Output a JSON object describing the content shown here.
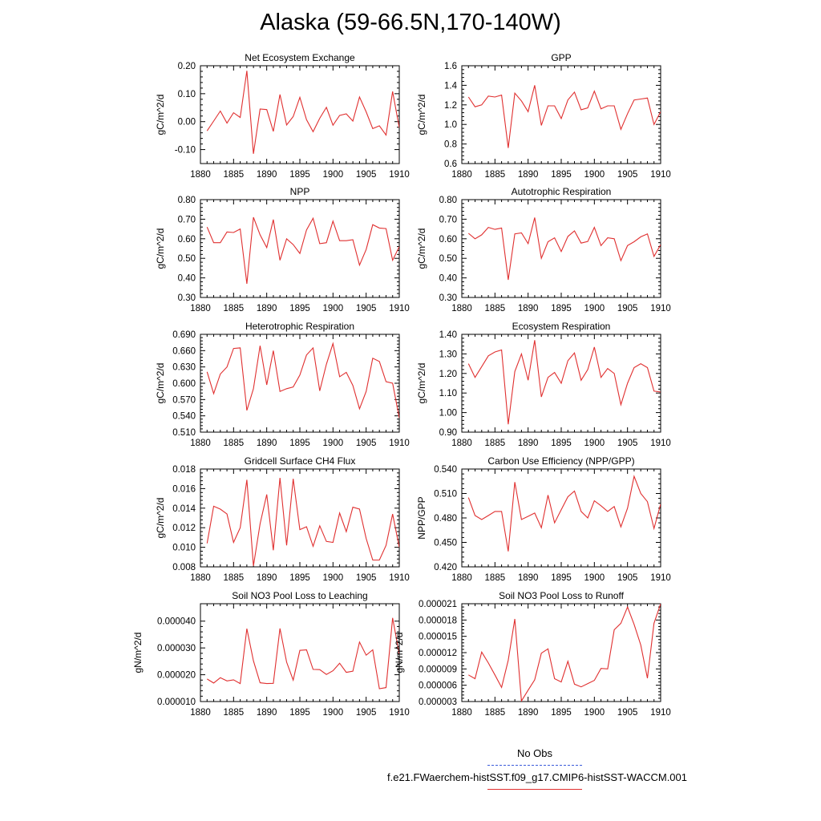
{
  "title": "Alaska (59-66.5N,170-140W)",
  "legend": {
    "obs_label": "No Obs",
    "obs_color": "#3b5bdb",
    "model_label": "f.e21.FWaerchem-histSST.f09_g17.CMIP6-histSST-WACCM.001",
    "model_color": "#e03030"
  },
  "chart_data": [
    {
      "type": "line",
      "title": "Net Ecosystem Exchange",
      "ylabel": "gC/m^2/d",
      "xlim": [
        1880,
        1910
      ],
      "xticks": [
        1880,
        1885,
        1890,
        1895,
        1900,
        1905,
        1910
      ],
      "ylim": [
        -0.15,
        0.2
      ],
      "yticks": [
        -0.1,
        0.0,
        0.1,
        0.2
      ],
      "ytick_labels": [
        "-0.10",
        "0.00",
        "0.10",
        "0.20"
      ],
      "x": [
        1881,
        1882,
        1883,
        1884,
        1885,
        1886,
        1887,
        1888,
        1889,
        1890,
        1891,
        1892,
        1893,
        1894,
        1895,
        1896,
        1897,
        1898,
        1899,
        1900,
        1901,
        1902,
        1903,
        1904,
        1905,
        1906,
        1907,
        1908,
        1909,
        1910
      ],
      "series": [
        {
          "values": [
            -0.033,
            0.002,
            0.038,
            -0.005,
            0.032,
            0.015,
            0.182,
            -0.115,
            0.045,
            0.043,
            -0.035,
            0.097,
            -0.012,
            0.018,
            0.087,
            0.007,
            -0.036,
            0.012,
            0.051,
            -0.013,
            0.022,
            0.028,
            0.002,
            0.088,
            0.035,
            -0.025,
            -0.015,
            -0.048,
            0.108,
            -0.022
          ],
          "color": "#e03030"
        }
      ]
    },
    {
      "type": "line",
      "title": "GPP",
      "ylabel": "gC/m^2/d",
      "xlim": [
        1880,
        1910
      ],
      "xticks": [
        1880,
        1885,
        1890,
        1895,
        1900,
        1905,
        1910
      ],
      "ylim": [
        0.6,
        1.6
      ],
      "yticks": [
        0.6,
        0.8,
        1.0,
        1.2,
        1.4,
        1.6
      ],
      "ytick_labels": [
        "0.6",
        "0.8",
        "1.0",
        "1.2",
        "1.4",
        "1.6"
      ],
      "x": [
        1881,
        1882,
        1883,
        1884,
        1885,
        1886,
        1887,
        1888,
        1889,
        1890,
        1891,
        1892,
        1893,
        1894,
        1895,
        1896,
        1897,
        1898,
        1899,
        1900,
        1901,
        1902,
        1903,
        1904,
        1905,
        1906,
        1907,
        1908,
        1909,
        1910
      ],
      "series": [
        {
          "values": [
            1.28,
            1.18,
            1.2,
            1.29,
            1.28,
            1.3,
            0.76,
            1.32,
            1.24,
            1.13,
            1.4,
            0.99,
            1.19,
            1.19,
            1.06,
            1.25,
            1.33,
            1.15,
            1.17,
            1.34,
            1.16,
            1.19,
            1.19,
            0.95,
            1.11,
            1.25,
            1.26,
            1.27,
            1.0,
            1.13
          ],
          "color": "#e03030"
        }
      ]
    },
    {
      "type": "line",
      "title": "NPP",
      "ylabel": "gC/m^2/d",
      "xlim": [
        1880,
        1910
      ],
      "xticks": [
        1880,
        1885,
        1890,
        1895,
        1900,
        1905,
        1910
      ],
      "ylim": [
        0.3,
        0.8
      ],
      "yticks": [
        0.3,
        0.4,
        0.5,
        0.6,
        0.7,
        0.8
      ],
      "ytick_labels": [
        "0.30",
        "0.40",
        "0.50",
        "0.60",
        "0.70",
        "0.80"
      ],
      "x": [
        1881,
        1882,
        1883,
        1884,
        1885,
        1886,
        1887,
        1888,
        1889,
        1890,
        1891,
        1892,
        1893,
        1894,
        1895,
        1896,
        1897,
        1898,
        1899,
        1900,
        1901,
        1902,
        1903,
        1904,
        1905,
        1906,
        1907,
        1908,
        1909,
        1910
      ],
      "series": [
        {
          "values": [
            0.66,
            0.58,
            0.58,
            0.635,
            0.632,
            0.65,
            0.37,
            0.71,
            0.62,
            0.555,
            0.698,
            0.49,
            0.6,
            0.57,
            0.525,
            0.645,
            0.705,
            0.575,
            0.58,
            0.69,
            0.59,
            0.59,
            0.595,
            0.465,
            0.545,
            0.672,
            0.655,
            0.652,
            0.49,
            0.56
          ],
          "color": "#e03030"
        }
      ]
    },
    {
      "type": "line",
      "title": "Autotrophic Respiration",
      "ylabel": "gC/m^2/d",
      "xlim": [
        1880,
        1910
      ],
      "xticks": [
        1880,
        1885,
        1890,
        1895,
        1900,
        1905,
        1910
      ],
      "ylim": [
        0.3,
        0.8
      ],
      "yticks": [
        0.3,
        0.4,
        0.5,
        0.6,
        0.7,
        0.8
      ],
      "ytick_labels": [
        "0.30",
        "0.40",
        "0.50",
        "0.60",
        "0.70",
        "0.80"
      ],
      "x": [
        1881,
        1882,
        1883,
        1884,
        1885,
        1886,
        1887,
        1888,
        1889,
        1890,
        1891,
        1892,
        1893,
        1894,
        1895,
        1896,
        1897,
        1898,
        1899,
        1900,
        1901,
        1902,
        1903,
        1904,
        1905,
        1906,
        1907,
        1908,
        1909,
        1910
      ],
      "series": [
        {
          "values": [
            0.628,
            0.6,
            0.62,
            0.658,
            0.648,
            0.655,
            0.39,
            0.625,
            0.63,
            0.575,
            0.708,
            0.5,
            0.585,
            0.605,
            0.535,
            0.612,
            0.64,
            0.578,
            0.586,
            0.658,
            0.565,
            0.605,
            0.6,
            0.488,
            0.565,
            0.585,
            0.61,
            0.625,
            0.51,
            0.57
          ],
          "color": "#e03030"
        }
      ]
    },
    {
      "type": "line",
      "title": "Heterotrophic Respiration",
      "ylabel": "gC/m^2/d",
      "xlim": [
        1880,
        1910
      ],
      "xticks": [
        1880,
        1885,
        1890,
        1895,
        1900,
        1905,
        1910
      ],
      "ylim": [
        0.51,
        0.69
      ],
      "yticks": [
        0.51,
        0.54,
        0.57,
        0.6,
        0.63,
        0.66,
        0.69
      ],
      "ytick_labels": [
        "0.510",
        "0.540",
        "0.570",
        "0.600",
        "0.630",
        "0.660",
        "0.690"
      ],
      "x": [
        1881,
        1882,
        1883,
        1884,
        1885,
        1886,
        1887,
        1888,
        1889,
        1890,
        1891,
        1892,
        1893,
        1894,
        1895,
        1896,
        1897,
        1898,
        1899,
        1900,
        1901,
        1902,
        1903,
        1904,
        1905,
        1906,
        1907,
        1908,
        1909,
        1910
      ],
      "series": [
        {
          "values": [
            0.621,
            0.581,
            0.617,
            0.63,
            0.664,
            0.665,
            0.55,
            0.59,
            0.669,
            0.597,
            0.66,
            0.585,
            0.59,
            0.593,
            0.615,
            0.652,
            0.665,
            0.586,
            0.635,
            0.673,
            0.612,
            0.62,
            0.596,
            0.553,
            0.585,
            0.646,
            0.64,
            0.603,
            0.6,
            0.536
          ],
          "color": "#e03030"
        }
      ]
    },
    {
      "type": "line",
      "title": "Ecosystem Respiration",
      "ylabel": "gC/m^2/d",
      "xlim": [
        1880,
        1910
      ],
      "xticks": [
        1880,
        1885,
        1890,
        1895,
        1900,
        1905,
        1910
      ],
      "ylim": [
        0.9,
        1.4
      ],
      "yticks": [
        0.9,
        1.0,
        1.1,
        1.2,
        1.3,
        1.4
      ],
      "ytick_labels": [
        "0.90",
        "1.00",
        "1.10",
        "1.20",
        "1.30",
        "1.40"
      ],
      "x": [
        1881,
        1882,
        1883,
        1884,
        1885,
        1886,
        1887,
        1888,
        1889,
        1890,
        1891,
        1892,
        1893,
        1894,
        1895,
        1896,
        1897,
        1898,
        1899,
        1900,
        1901,
        1902,
        1903,
        1904,
        1905,
        1906,
        1907,
        1908,
        1909,
        1910
      ],
      "series": [
        {
          "values": [
            1.25,
            1.18,
            1.235,
            1.29,
            1.31,
            1.32,
            0.94,
            1.21,
            1.3,
            1.165,
            1.37,
            1.08,
            1.18,
            1.205,
            1.15,
            1.265,
            1.305,
            1.165,
            1.22,
            1.335,
            1.18,
            1.225,
            1.2,
            1.04,
            1.15,
            1.23,
            1.25,
            1.23,
            1.11,
            1.105
          ],
          "color": "#e03030"
        }
      ]
    },
    {
      "type": "line",
      "title": "Gridcell Surface CH4 Flux",
      "ylabel": "gC/m^2/d",
      "xlim": [
        1880,
        1910
      ],
      "xticks": [
        1880,
        1885,
        1890,
        1895,
        1900,
        1905,
        1910
      ],
      "ylim": [
        0.008,
        0.018
      ],
      "yticks": [
        0.008,
        0.01,
        0.012,
        0.014,
        0.016,
        0.018
      ],
      "ytick_labels": [
        "0.008",
        "0.010",
        "0.012",
        "0.014",
        "0.016",
        "0.018"
      ],
      "x": [
        1881,
        1882,
        1883,
        1884,
        1885,
        1886,
        1887,
        1888,
        1889,
        1890,
        1891,
        1892,
        1893,
        1894,
        1895,
        1896,
        1897,
        1898,
        1899,
        1900,
        1901,
        1902,
        1903,
        1904,
        1905,
        1906,
        1907,
        1908,
        1909,
        1910
      ],
      "series": [
        {
          "values": [
            0.0104,
            0.0142,
            0.0139,
            0.0134,
            0.0105,
            0.012,
            0.0169,
            0.0081,
            0.0124,
            0.0154,
            0.0097,
            0.0171,
            0.0102,
            0.017,
            0.0118,
            0.0121,
            0.0101,
            0.0122,
            0.0106,
            0.0105,
            0.0135,
            0.0116,
            0.0141,
            0.0139,
            0.0109,
            0.0087,
            0.0087,
            0.0102,
            0.0134,
            0.01
          ],
          "color": "#e03030"
        }
      ]
    },
    {
      "type": "line",
      "title": "Carbon Use Efficiency (NPP/GPP)",
      "ylabel": "NPP/GPP",
      "xlim": [
        1880,
        1910
      ],
      "xticks": [
        1880,
        1885,
        1890,
        1895,
        1900,
        1905,
        1910
      ],
      "ylim": [
        0.42,
        0.54
      ],
      "yticks": [
        0.42,
        0.45,
        0.48,
        0.51,
        0.54
      ],
      "ytick_labels": [
        "0.420",
        "0.450",
        "0.480",
        "0.510",
        "0.540"
      ],
      "x": [
        1881,
        1882,
        1883,
        1884,
        1885,
        1886,
        1887,
        1888,
        1889,
        1890,
        1891,
        1892,
        1893,
        1894,
        1895,
        1896,
        1897,
        1898,
        1899,
        1900,
        1901,
        1902,
        1903,
        1904,
        1905,
        1906,
        1907,
        1908,
        1909,
        1910
      ],
      "series": [
        {
          "values": [
            0.505,
            0.483,
            0.478,
            0.483,
            0.488,
            0.488,
            0.439,
            0.524,
            0.478,
            0.482,
            0.486,
            0.468,
            0.508,
            0.474,
            0.49,
            0.506,
            0.513,
            0.488,
            0.48,
            0.501,
            0.495,
            0.488,
            0.494,
            0.469,
            0.492,
            0.531,
            0.51,
            0.5,
            0.467,
            0.497
          ],
          "color": "#e03030"
        }
      ]
    },
    {
      "type": "line",
      "title": "Soil NO3 Pool Loss to Leaching",
      "ylabel": "gN/m^2/d",
      "xlim": [
        1880,
        1910
      ],
      "xticks": [
        1880,
        1885,
        1890,
        1895,
        1900,
        1905,
        1910
      ],
      "ylim": [
        1e-05,
        4.65e-05
      ],
      "yticks": [
        1e-05,
        2e-05,
        3e-05,
        4e-05
      ],
      "ytick_labels": [
        "0.000010",
        "0.000020",
        "0.000030",
        "0.000040"
      ],
      "x": [
        1881,
        1882,
        1883,
        1884,
        1885,
        1886,
        1887,
        1888,
        1889,
        1890,
        1891,
        1892,
        1893,
        1894,
        1895,
        1896,
        1897,
        1898,
        1899,
        1900,
        1901,
        1902,
        1903,
        1904,
        1905,
        1906,
        1907,
        1908,
        1909,
        1910
      ],
      "series": [
        {
          "values": [
            1.84e-05,
            1.69e-05,
            1.89e-05,
            1.77e-05,
            1.81e-05,
            1.67e-05,
            3.72e-05,
            2.52e-05,
            1.7e-05,
            1.67e-05,
            1.68e-05,
            3.73e-05,
            2.47e-05,
            1.8e-05,
            2.91e-05,
            2.93e-05,
            2.2e-05,
            2.19e-05,
            2.01e-05,
            2.15e-05,
            2.43e-05,
            2.09e-05,
            2.13e-05,
            3.22e-05,
            2.73e-05,
            2.93e-05,
            1.48e-05,
            1.52e-05,
            4.12e-05,
            2.76e-05
          ],
          "color": "#e03030"
        }
      ]
    },
    {
      "type": "line",
      "title": "Soil NO3 Pool Loss to Runoff",
      "ylabel": "gN/m^2/d",
      "xlim": [
        1880,
        1910
      ],
      "xticks": [
        1880,
        1885,
        1890,
        1895,
        1900,
        1905,
        1910
      ],
      "ylim": [
        3e-06,
        2.1e-05
      ],
      "yticks": [
        3e-06,
        6e-06,
        9e-06,
        1.2e-05,
        1.5e-05,
        1.8e-05,
        2.1e-05
      ],
      "ytick_labels": [
        "0.000003",
        "0.000006",
        "0.000009",
        "0.000012",
        "0.000015",
        "0.000018",
        "0.000021"
      ],
      "x": [
        1881,
        1882,
        1883,
        1884,
        1885,
        1886,
        1887,
        1888,
        1889,
        1890,
        1891,
        1892,
        1893,
        1894,
        1895,
        1896,
        1897,
        1898,
        1899,
        1900,
        1901,
        1902,
        1903,
        1904,
        1905,
        1906,
        1907,
        1908,
        1909,
        1910
      ],
      "series": [
        {
          "values": [
            7.9e-06,
            7.2e-06,
            1.21e-05,
            1.01e-05,
            7.9e-06,
            5.6e-06,
            1.06e-05,
            1.82e-05,
            3.1e-06,
            5.1e-06,
            7e-06,
            1.19e-05,
            1.27e-05,
            7.2e-06,
            6.6e-06,
            1.04e-05,
            6.2e-06,
            5.7e-06,
            6.3e-06,
            6.9e-06,
            9.1e-06,
            9e-06,
            1.62e-05,
            1.74e-05,
            2.04e-05,
            1.72e-05,
            1.34e-05,
            7.3e-06,
            1.74e-05,
            2.1e-05
          ],
          "color": "#e03030"
        }
      ]
    }
  ]
}
